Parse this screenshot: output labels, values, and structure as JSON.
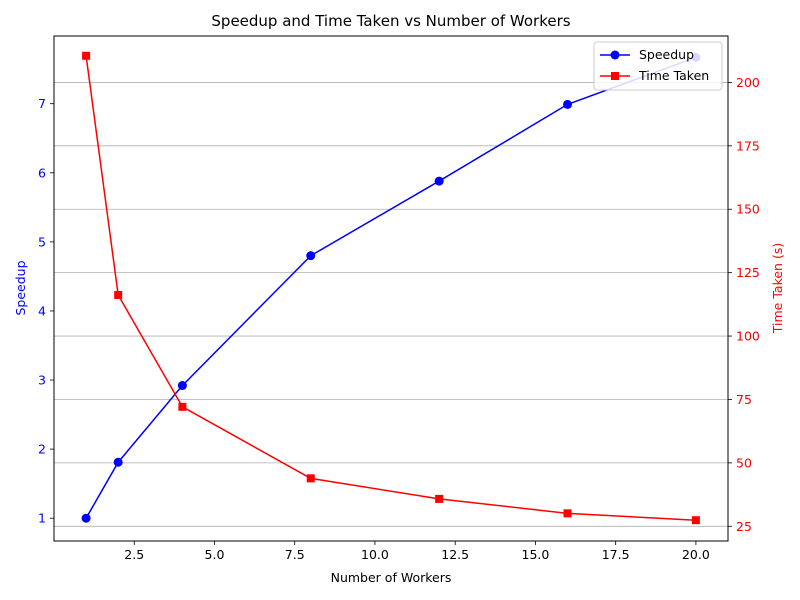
{
  "chart_data": {
    "type": "line",
    "title": "Speedup and Time Taken vs Number of Workers",
    "xlabel": "Number of Workers",
    "x": [
      1,
      2,
      4,
      8,
      12,
      16,
      20
    ],
    "xlim": [
      -0.0,
      21.0
    ],
    "xticks": [
      2.5,
      5.0,
      7.5,
      10.0,
      12.5,
      15.0,
      17.5,
      20.0
    ],
    "xtick_labels": [
      "2.5",
      "5.0",
      "7.5",
      "10.0",
      "12.5",
      "15.0",
      "17.5",
      "20.0"
    ],
    "y_left": {
      "label": "Speedup",
      "color": "#0000ff",
      "lim": [
        0.67,
        7.98
      ],
      "ticks": [
        1,
        2,
        3,
        4,
        5,
        6,
        7
      ],
      "tick_labels": [
        "1",
        "2",
        "3",
        "4",
        "5",
        "6",
        "7"
      ]
    },
    "y_right": {
      "label": "Time Taken (s)",
      "color": "#ff0000",
      "lim": [
        19.2,
        218.3
      ],
      "ticks": [
        25,
        50,
        75,
        100,
        125,
        150,
        175,
        200
      ],
      "tick_labels": [
        "25",
        "50",
        "75",
        "100",
        "125",
        "150",
        "175",
        "200"
      ],
      "grid": true
    },
    "series": [
      {
        "name": "Speedup",
        "axis": "left",
        "color": "#0000ff",
        "marker": "circle",
        "values": [
          1.0,
          1.81,
          2.92,
          4.8,
          5.88,
          6.99,
          7.67
        ]
      },
      {
        "name": "Time Taken",
        "axis": "right",
        "color": "#ff0000",
        "marker": "square",
        "values": [
          210.5,
          116.2,
          72.1,
          43.9,
          35.8,
          30.1,
          27.4
        ]
      }
    ],
    "legend": {
      "position": "top-right"
    }
  }
}
